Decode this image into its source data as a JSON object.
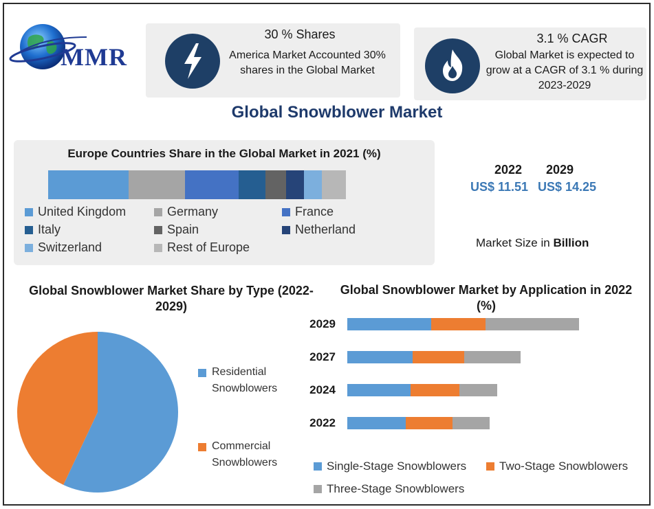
{
  "logo": {
    "text": "MMR"
  },
  "kpis": [
    {
      "title": "30 % Shares",
      "description": "America Market Accounted 30% shares in the Global Market",
      "icon": "lightning-icon"
    },
    {
      "title": "3.1 % CAGR",
      "description": "Global Market is expected to grow at a CAGR of 3.1 % during 2023-2029",
      "icon": "flame-icon"
    }
  ],
  "main_title": "Global Snowblower Market",
  "market_size": {
    "years": [
      "2022",
      "2029"
    ],
    "values": [
      "US$ 11.51",
      "US$ 14.25"
    ],
    "label_prefix": "Market Size in ",
    "label_unit": "Billion"
  },
  "colors": {
    "united_kingdom": "#5b9bd5",
    "germany": "#a5a5a5",
    "france": "#4472c4",
    "italy": "#255e91",
    "spain": "#636363",
    "netherland": "#264478",
    "switzerland": "#7cafdd",
    "rest_of_europe": "#b7b7b7",
    "blue": "#5b9bd5",
    "orange": "#ed7d31",
    "gray": "#a5a5a5",
    "icon_bg": "#1e3f66"
  },
  "chart_data": [
    {
      "type": "bar",
      "orientation": "horizontal-stacked-100",
      "title": "Europe Countries Share in the Global Market in 2021 (%)",
      "categories": [
        "2021"
      ],
      "series": [
        {
          "name": "United Kingdom",
          "values": [
            27
          ]
        },
        {
          "name": "Germany",
          "values": [
            19
          ]
        },
        {
          "name": "France",
          "values": [
            18
          ]
        },
        {
          "name": "Italy",
          "values": [
            9
          ]
        },
        {
          "name": "Spain",
          "values": [
            7
          ]
        },
        {
          "name": "Netherland",
          "values": [
            6
          ]
        },
        {
          "name": "Switzerland",
          "values": [
            6
          ]
        },
        {
          "name": "Rest of Europe",
          "values": [
            8
          ]
        }
      ],
      "legend": "bottom"
    },
    {
      "type": "pie",
      "title": "Global Snowblower Market Share by Type (2022-2029)",
      "labels": [
        "Residential Snowblowers",
        "Commercial Snowblowers"
      ],
      "values": [
        57,
        43
      ],
      "legend": "right"
    },
    {
      "type": "bar",
      "orientation": "horizontal-stacked",
      "title": "Global Snowblower Market by Application in 2022 (%)",
      "categories": [
        "2029",
        "2027",
        "2024",
        "2022"
      ],
      "series": [
        {
          "name": "Single-Stage Snowblowers",
          "values": [
            36,
            28,
            27,
            25
          ]
        },
        {
          "name": "Two-Stage Snowblowers",
          "values": [
            23,
            22,
            21,
            20
          ]
        },
        {
          "name": "Three-Stage Snowblowers",
          "values": [
            40,
            24,
            16,
            16
          ]
        }
      ],
      "xlim": [
        0,
        100
      ],
      "grid": false,
      "legend": "bottom"
    }
  ]
}
